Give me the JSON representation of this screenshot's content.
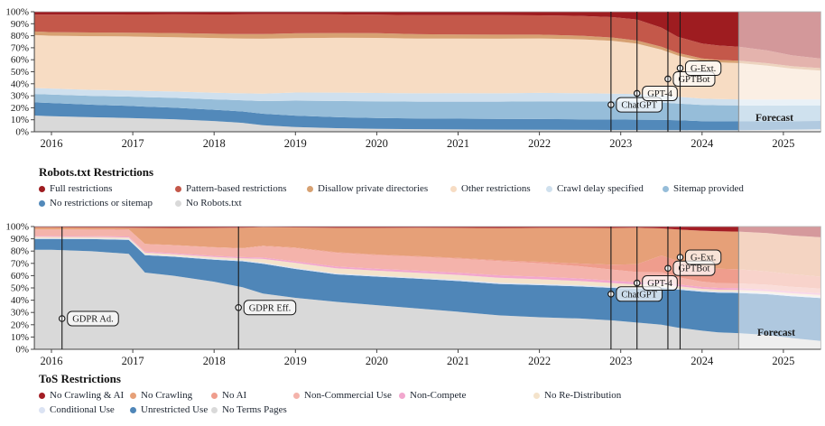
{
  "figure": {
    "forecast_label": "Forecast"
  },
  "chart_data": [
    {
      "type": "area",
      "stacked": true,
      "units": "percent",
      "title": "Robots.txt Restrictions",
      "ylim": [
        0,
        100
      ],
      "grid": false,
      "legend_position": "below",
      "y_ticks": [
        {
          "value": 0,
          "label": "0%"
        },
        {
          "value": 10,
          "label": "10%"
        },
        {
          "value": 20,
          "label": "20%"
        },
        {
          "value": 30,
          "label": "30%"
        },
        {
          "value": 40,
          "label": "40%"
        },
        {
          "value": 50,
          "label": "50%"
        },
        {
          "value": 60,
          "label": "60%"
        },
        {
          "value": 70,
          "label": "70%"
        },
        {
          "value": 80,
          "label": "80%"
        },
        {
          "value": 90,
          "label": "90%"
        },
        {
          "value": 100,
          "label": "100%"
        }
      ],
      "x_ticks": [
        {
          "value": 2016,
          "label": "2016"
        },
        {
          "value": 2017,
          "label": "2017"
        },
        {
          "value": 2018,
          "label": "2018"
        },
        {
          "value": 2019,
          "label": "2019"
        },
        {
          "value": 2020,
          "label": "2020"
        },
        {
          "value": 2021,
          "label": "2021"
        },
        {
          "value": 2022,
          "label": "2022"
        },
        {
          "value": 2023,
          "label": "2023"
        },
        {
          "value": 2024,
          "label": "2024"
        },
        {
          "value": 2025,
          "label": "2025"
        }
      ],
      "x": [
        2015.79,
        2016,
        2016.5,
        2016.95,
        2017.15,
        2017.5,
        2018,
        2018.35,
        2018.6,
        2019,
        2019.5,
        2020,
        2020.5,
        2021,
        2021.5,
        2022,
        2022.5,
        2022.9,
        2023.2,
        2023.5,
        2023.7,
        2024,
        2024.2,
        2024.45,
        2024.8,
        2025.1,
        2025.46
      ],
      "series": [
        {
          "key": "no_robots",
          "name": "No Robots.txt",
          "color": "#d9d9d9",
          "values": [
            13.5,
            13,
            12.2,
            11.6,
            11.2,
            10.6,
            9,
            7.5,
            5.5,
            4,
            3,
            2.5,
            2.2,
            2,
            1.8,
            1.7,
            1.6,
            1.5,
            1.5,
            1.4,
            1.4,
            1.3,
            1.3,
            1.3,
            1.5,
            1.8,
            2
          ]
        },
        {
          "key": "no_restrictions",
          "name": "No restrictions or sitemap",
          "color": "#5289ba",
          "values": [
            11,
            11,
            10.5,
            10.2,
            10,
            9.8,
            9.5,
            9.5,
            9.5,
            9.5,
            9.2,
            9,
            9,
            9,
            9,
            9,
            8.8,
            8.7,
            8.6,
            8.5,
            8.3,
            7.6,
            7.4,
            7.3,
            7.1,
            7,
            7
          ]
        },
        {
          "key": "sitemap",
          "name": "Sitemap provided",
          "color": "#96bdd9",
          "values": [
            7,
            7,
            7.4,
            7.8,
            8,
            8.3,
            8.8,
            9.3,
            10.5,
            12.5,
            13.5,
            14,
            14.2,
            14.4,
            14.6,
            15,
            15,
            15,
            15,
            14.5,
            14,
            13.5,
            13.3,
            13.2,
            13,
            13,
            13
          ]
        },
        {
          "key": "crawl_delay",
          "name": "Crawl delay specified",
          "color": "#cfe0ee",
          "values": [
            5,
            5,
            5,
            5.1,
            5.2,
            5.3,
            5.6,
            5.8,
            6.2,
            6.8,
            7,
            7,
            7,
            7,
            7,
            7,
            6.8,
            6.6,
            6.3,
            6,
            5.7,
            5.2,
            5.1,
            5,
            5,
            5,
            5
          ]
        },
        {
          "key": "other",
          "name": "Other restrictions",
          "color": "#f7dcc3",
          "values": [
            44,
            44,
            45,
            45.4,
            45.6,
            46,
            46,
            45.8,
            45.6,
            45.5,
            45.7,
            46.2,
            46.1,
            46,
            46,
            45.8,
            45,
            44,
            42,
            38,
            34.5,
            31.5,
            30.5,
            30,
            28,
            25.5,
            24
          ]
        },
        {
          "key": "disallow",
          "name": "Disallow private directories",
          "color": "#d7a172",
          "values": [
            3,
            3,
            3.1,
            3.2,
            3.3,
            3.5,
            3.6,
            3.7,
            3.9,
            4,
            4,
            3.9,
            3.7,
            3.5,
            3.4,
            3.2,
            3,
            2.8,
            2.6,
            2.4,
            2.2,
            2,
            2,
            2,
            2,
            2,
            2
          ]
        },
        {
          "key": "pattern",
          "name": "Pattern-based restrictions",
          "color": "#c4584a",
          "values": [
            14,
            14.5,
            15,
            15.3,
            15.5,
            15.8,
            16.2,
            16.5,
            16.4,
            16,
            15.6,
            15.5,
            16,
            16.3,
            16.4,
            16.3,
            16.5,
            17,
            17.5,
            16,
            13.5,
            12.5,
            12,
            11.5,
            10.5,
            9,
            8
          ]
        },
        {
          "key": "full",
          "name": "Full restrictions",
          "color": "#9e1c20",
          "values": [
            2.5,
            2.5,
            2.4,
            2.3,
            2.3,
            2.2,
            2.3,
            2.2,
            2.1,
            2,
            2.2,
            2.5,
            2.9,
            2.8,
            2.9,
            3,
            3.5,
            4.5,
            6.5,
            13.2,
            21,
            26.5,
            28,
            29,
            32,
            36,
            39
          ]
        }
      ],
      "legend_rows": [
        [
          "full",
          "pattern",
          "disallow",
          "other",
          "crawl_delay",
          "sitemap"
        ],
        [
          "no_restrictions",
          "no_robots"
        ]
      ],
      "events": [
        {
          "key": "chatgpt",
          "label": "ChatGPT",
          "year": 2022.88,
          "pct": 22.5
        },
        {
          "key": "gpt-4",
          "label": "GPT-4",
          "year": 2023.2,
          "pct": 32
        },
        {
          "key": "gptbot",
          "label": "GPTBot",
          "year": 2023.58,
          "pct": 44
        },
        {
          "key": "g-ext",
          "label": "G-Ext.",
          "year": 2023.73,
          "pct": 53
        }
      ],
      "forecast_start": 2024.45,
      "forecast_label": "Forecast"
    },
    {
      "type": "area",
      "stacked": true,
      "units": "percent",
      "title": "ToS Restrictions",
      "ylim": [
        0,
        100
      ],
      "grid": false,
      "legend_position": "below",
      "y_ticks": [
        {
          "value": 0,
          "label": "0%"
        },
        {
          "value": 10,
          "label": "10%"
        },
        {
          "value": 20,
          "label": "20%"
        },
        {
          "value": 30,
          "label": "30%"
        },
        {
          "value": 40,
          "label": "40%"
        },
        {
          "value": 50,
          "label": "50%"
        },
        {
          "value": 60,
          "label": "60%"
        },
        {
          "value": 70,
          "label": "70%"
        },
        {
          "value": 80,
          "label": "80%"
        },
        {
          "value": 90,
          "label": "90%"
        },
        {
          "value": 100,
          "label": "100%"
        }
      ],
      "x_ticks": [
        {
          "value": 2016,
          "label": "2016"
        },
        {
          "value": 2017,
          "label": "2017"
        },
        {
          "value": 2018,
          "label": "2018"
        },
        {
          "value": 2019,
          "label": "2019"
        },
        {
          "value": 2020,
          "label": "2020"
        },
        {
          "value": 2021,
          "label": "2021"
        },
        {
          "value": 2022,
          "label": "2022"
        },
        {
          "value": 2023,
          "label": "2023"
        },
        {
          "value": 2024,
          "label": "2024"
        },
        {
          "value": 2025,
          "label": "2025"
        }
      ],
      "x": [
        2015.79,
        2016,
        2016.5,
        2016.95,
        2017.15,
        2017.5,
        2018,
        2018.35,
        2018.6,
        2019,
        2019.5,
        2020,
        2020.5,
        2021,
        2021.5,
        2022,
        2022.5,
        2022.9,
        2023.2,
        2023.5,
        2023.7,
        2024,
        2024.2,
        2024.45,
        2024.8,
        2025.1,
        2025.46
      ],
      "series": [
        {
          "key": "no_terms",
          "name": "No Terms Pages",
          "color": "#d9d9d9",
          "values": [
            83,
            82.5,
            81,
            78,
            62,
            60,
            54,
            50,
            44,
            41,
            38,
            35.5,
            33,
            30.5,
            27.5,
            26,
            25,
            23.5,
            22,
            20,
            18,
            15.5,
            14,
            13.5,
            12,
            9.5,
            7
          ]
        },
        {
          "key": "unrestricted",
          "name": "Unrestricted Use",
          "color": "#4f86b8",
          "values": [
            9,
            9,
            10,
            11.5,
            14,
            15.5,
            17.5,
            21,
            23.5,
            23,
            22,
            23,
            24,
            25,
            25.5,
            26,
            26,
            26.5,
            28,
            30,
            31.5,
            32.5,
            33,
            33.5,
            34,
            35,
            36
          ]
        },
        {
          "key": "conditional",
          "name": "Conditional Use",
          "color": "#dbe3f3",
          "values": [
            0.6,
            0.6,
            0.6,
            0.7,
            0.7,
            0.7,
            0.7,
            0.7,
            0.8,
            0.8,
            0.8,
            0.8,
            0.8,
            1,
            1,
            1,
            1,
            1,
            1,
            1,
            1,
            1,
            1,
            1,
            1,
            1,
            1
          ]
        },
        {
          "key": "no_redistribution",
          "name": "No Re-Distribution",
          "color": "#f4e3cb",
          "values": [
            1.2,
            1.2,
            1.2,
            1.3,
            1.4,
            1.4,
            1.5,
            1.6,
            3,
            4,
            4,
            4,
            4,
            4,
            4,
            3.8,
            3.4,
            3,
            2.5,
            2,
            1.8,
            1.5,
            1.5,
            1.5,
            1.5,
            1.5,
            1.5
          ]
        },
        {
          "key": "non_compete",
          "name": "Non-Compete",
          "color": "#f2a7ce",
          "values": [
            0.7,
            0.7,
            0.7,
            0.8,
            0.8,
            0.8,
            0.9,
            1,
            1.1,
            1.3,
            1.5,
            1.5,
            1.7,
            1.8,
            2,
            2,
            2,
            1.9,
            1.7,
            1.6,
            1.5,
            1.5,
            1.5,
            1.5,
            1.5,
            1.5,
            1.5
          ]
        },
        {
          "key": "non_commercial",
          "name": "Non-Commercial Use",
          "color": "#f4b3ab",
          "values": [
            5,
            5,
            5.3,
            5.6,
            6,
            6.3,
            6.6,
            7,
            9,
            10.5,
            11,
            11,
            11.2,
            11.4,
            11.5,
            11,
            10,
            9,
            8.5,
            8,
            6,
            4.5,
            4,
            4,
            4,
            4,
            4
          ]
        },
        {
          "key": "no_ai",
          "name": "No AI",
          "color": "#ef9d8d",
          "values": [
            0.3,
            0.3,
            0.3,
            0.3,
            0.3,
            0.3,
            0.3,
            0.3,
            0.4,
            0.5,
            0.5,
            0.5,
            0.5,
            0.6,
            0.8,
            1.2,
            2.2,
            4,
            6.5,
            13.5,
            13.5,
            12.5,
            12,
            11.8,
            11,
            10.5,
            10
          ]
        },
        {
          "key": "no_crawling",
          "name": "No Crawling",
          "color": "#e6a078",
          "values": [
            1.8,
            1.8,
            1.5,
            1.3,
            13,
            14,
            15.5,
            16.5,
            14.5,
            16,
            19.5,
            21.5,
            23,
            24.5,
            26,
            27.5,
            29,
            30,
            30,
            22,
            26,
            30,
            31,
            31.5,
            32,
            32.5,
            33
          ]
        },
        {
          "key": "no_crawling_ai",
          "name": "No Crawling & AI",
          "color": "#a31d24",
          "values": [
            0.7,
            0.7,
            0.8,
            0.9,
            1,
            1.1,
            1,
            0.9,
            0.6,
            0.7,
            1,
            1,
            0.9,
            1,
            1.2,
            1,
            1,
            1.1,
            1,
            1.5,
            2.5,
            3.5,
            4,
            4.2,
            5.5,
            7.5,
            9
          ]
        }
      ],
      "legend_rows": [
        [
          "no_crawling_ai",
          "no_crawling",
          "no_ai",
          "non_commercial",
          "non_compete",
          "no_redistribution"
        ],
        [
          "conditional",
          "unrestricted",
          "no_terms"
        ]
      ],
      "events": [
        {
          "key": "gdpr-ad",
          "label": "GDPR Ad.",
          "year": 2016.13,
          "pct": 25
        },
        {
          "key": "gdpr-eff",
          "label": "GDPR Eff.",
          "year": 2018.3,
          "pct": 34
        },
        {
          "key": "chatgpt",
          "label": "ChatGPT",
          "year": 2022.88,
          "pct": 45
        },
        {
          "key": "gpt-4",
          "label": "GPT-4",
          "year": 2023.2,
          "pct": 54
        },
        {
          "key": "gptbot",
          "label": "GPTBot",
          "year": 2023.58,
          "pct": 66
        },
        {
          "key": "g-ext",
          "label": "G-Ext.",
          "year": 2023.73,
          "pct": 75
        }
      ],
      "forecast_start": 2024.45,
      "forecast_label": "Forecast"
    }
  ]
}
